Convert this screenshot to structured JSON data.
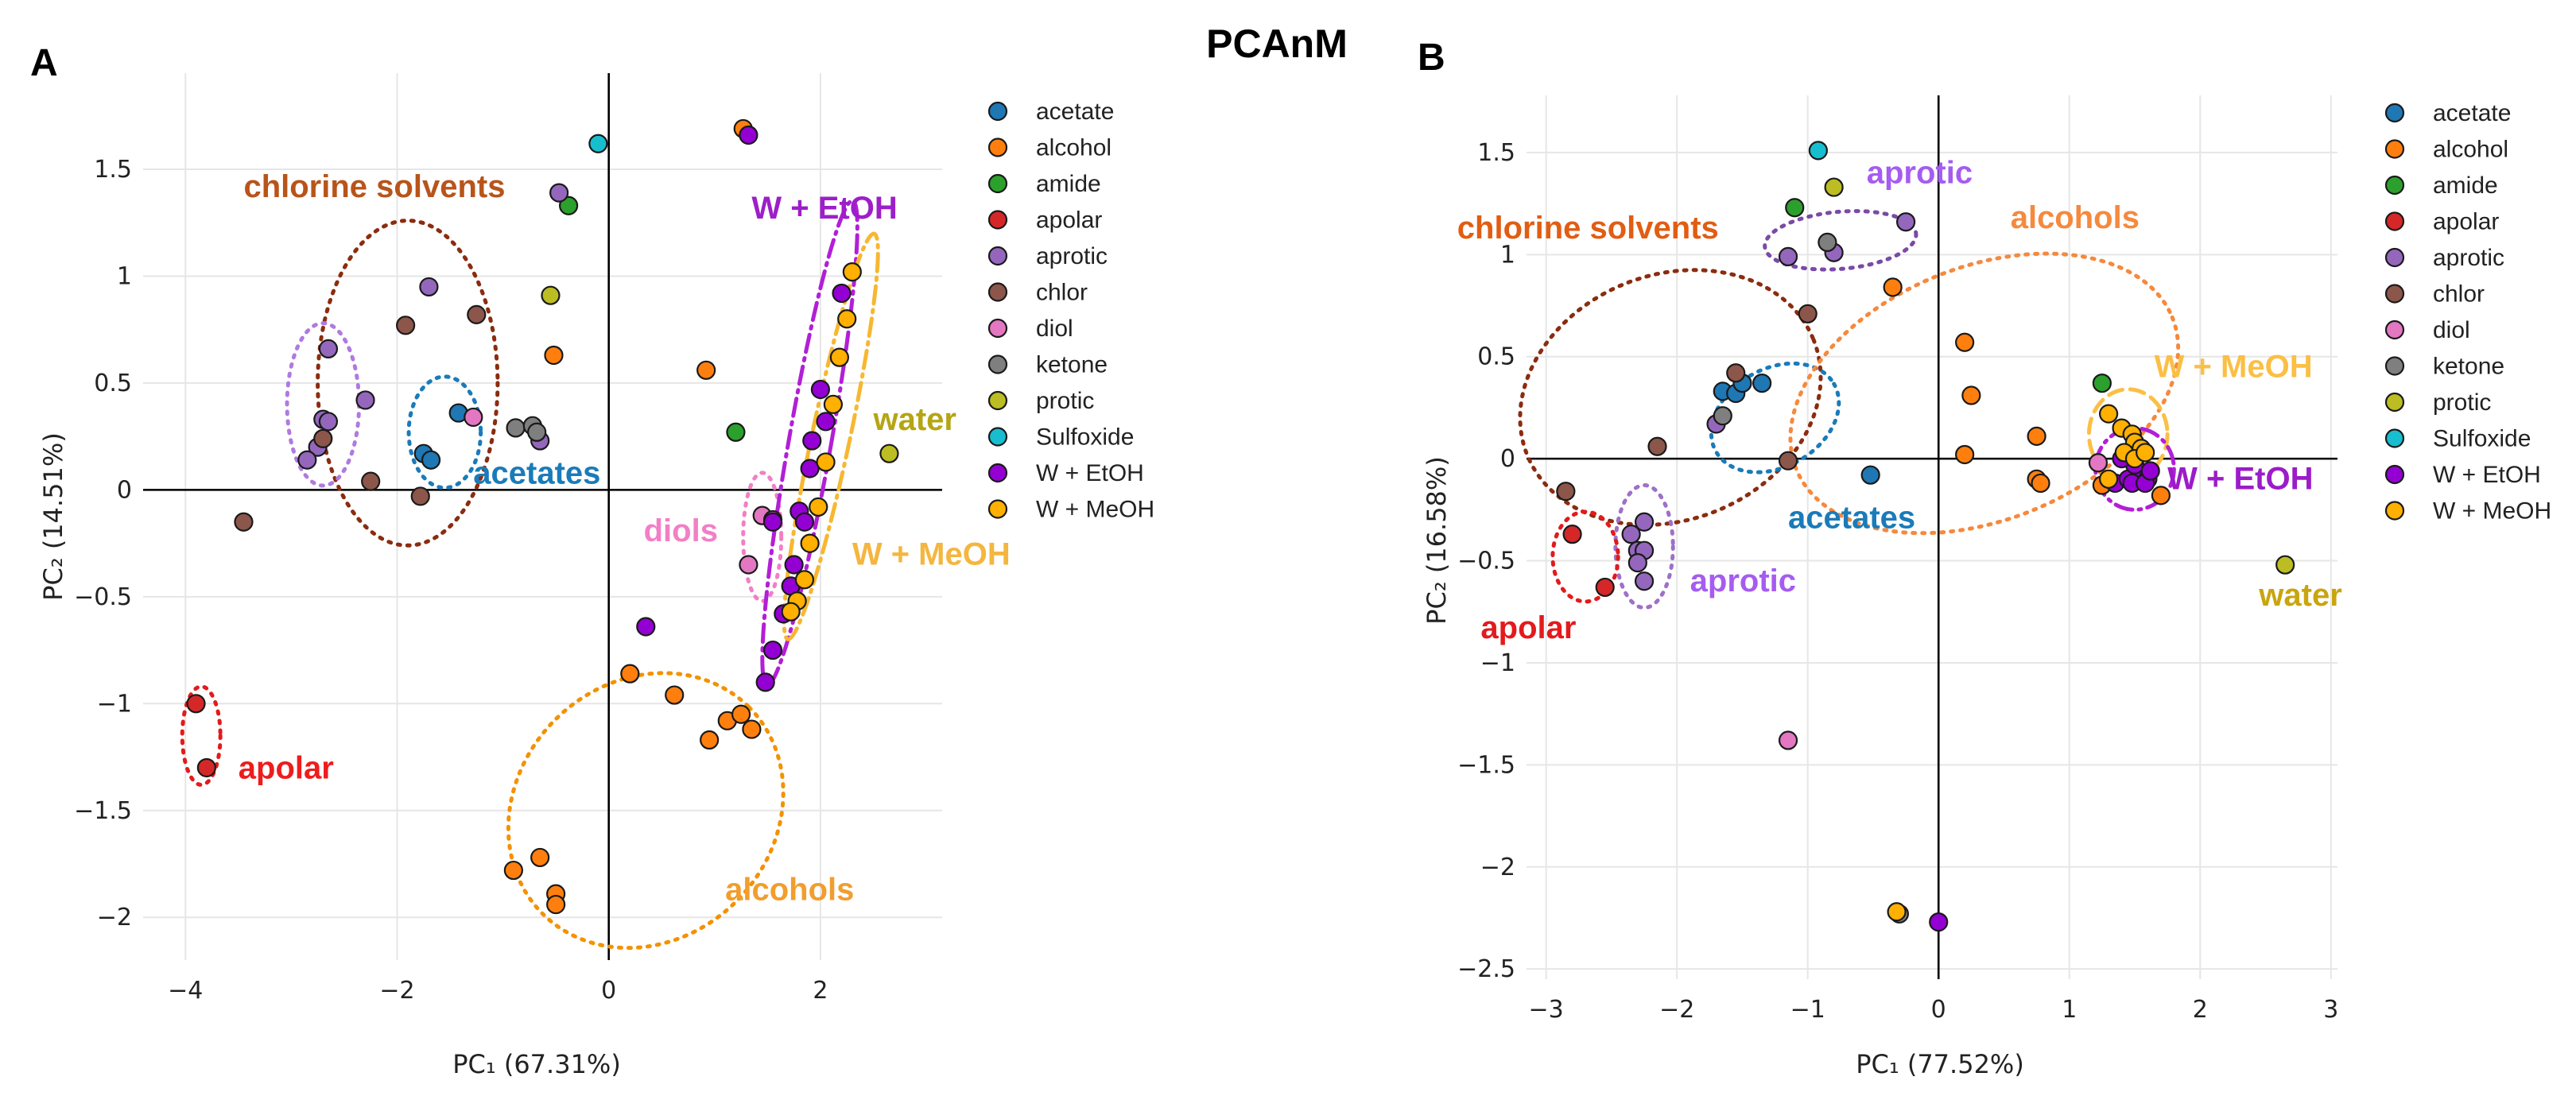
{
  "figure": {
    "title": "PCAnM",
    "colors": {
      "acetate": "#1f77b4",
      "alcohol": "#ff7f0e",
      "amide": "#2ca02c",
      "apolar": "#d62728",
      "aprotic": "#9467bd",
      "chlor": "#8c564b",
      "diol": "#e377c2",
      "ketone": "#7f7f7f",
      "protic": "#bcbd22",
      "Sulfoxide": "#17becf",
      "W + EtOH": "#9400d3",
      "W + MeOH": "#ffb000"
    }
  },
  "chart_data": [
    {
      "type": "scatter",
      "panel_label": "A",
      "xlabel": "PC₁ (67.31%)",
      "ylabel": "PC₂ (14.51%)",
      "xlim": [
        -4.4,
        3.15
      ],
      "ylim": [
        -2.2,
        1.95
      ],
      "xticks": [
        -4,
        -2,
        0,
        2
      ],
      "xtick_labels": [
        "−4",
        "−2",
        "0",
        "2"
      ],
      "yticks": [
        1.5,
        1,
        0.5,
        0,
        -0.5,
        -1,
        -1.5,
        -2
      ],
      "ytick_labels": [
        "1.5",
        "1",
        "0.5",
        "0",
        "−0.5",
        "−1",
        "−1.5",
        "−2"
      ],
      "legend": [
        "acetate",
        "alcohol",
        "amide",
        "apolar",
        "aprotic",
        "chlor",
        "diol",
        "ketone",
        "protic",
        "Sulfoxide",
        "W + EtOH",
        "W + MeOH"
      ],
      "series": [
        {
          "name": "acetate",
          "points": [
            [
              -1.42,
              0.36
            ],
            [
              -1.75,
              0.17
            ],
            [
              -1.68,
              0.14
            ]
          ]
        },
        {
          "name": "alcohol",
          "points": [
            [
              0.92,
              0.56
            ],
            [
              -0.52,
              0.63
            ],
            [
              0.2,
              -0.86
            ],
            [
              0.62,
              -0.96
            ],
            [
              0.95,
              -1.17
            ],
            [
              1.12,
              -1.08
            ],
            [
              1.25,
              -1.05
            ],
            [
              1.35,
              -1.12
            ],
            [
              -0.9,
              -1.78
            ],
            [
              -0.65,
              -1.72
            ],
            [
              -0.5,
              -1.89
            ],
            [
              -0.5,
              -1.94
            ],
            [
              1.27,
              1.69
            ]
          ]
        },
        {
          "name": "amide",
          "points": [
            [
              -0.38,
              1.33
            ],
            [
              1.2,
              0.27
            ]
          ]
        },
        {
          "name": "apolar",
          "points": [
            [
              -3.9,
              -1.0
            ],
            [
              -3.8,
              -1.3
            ]
          ]
        },
        {
          "name": "aprotic",
          "points": [
            [
              -0.47,
              1.39
            ],
            [
              -1.7,
              0.95
            ],
            [
              -2.65,
              0.66
            ],
            [
              -2.3,
              0.42
            ],
            [
              -2.7,
              0.33
            ],
            [
              -2.65,
              0.32
            ],
            [
              -2.75,
              0.2
            ],
            [
              -2.85,
              0.14
            ],
            [
              -0.65,
              0.23
            ]
          ]
        },
        {
          "name": "chlor",
          "points": [
            [
              -1.92,
              0.77
            ],
            [
              -1.25,
              0.82
            ],
            [
              -2.7,
              0.24
            ],
            [
              -2.25,
              0.04
            ],
            [
              -3.45,
              -0.15
            ],
            [
              -1.78,
              -0.03
            ]
          ]
        },
        {
          "name": "diol",
          "points": [
            [
              -1.28,
              0.34
            ],
            [
              1.45,
              -0.12
            ],
            [
              1.55,
              -0.14
            ],
            [
              1.32,
              -0.35
            ]
          ]
        },
        {
          "name": "ketone",
          "points": [
            [
              -0.88,
              0.29
            ],
            [
              -0.72,
              0.3
            ],
            [
              -0.68,
              0.27
            ]
          ]
        },
        {
          "name": "protic",
          "points": [
            [
              -0.55,
              0.91
            ],
            [
              2.65,
              0.17
            ]
          ]
        },
        {
          "name": "Sulfoxide",
          "points": [
            [
              -0.1,
              1.62
            ]
          ]
        },
        {
          "name": "W + EtOH",
          "points": [
            [
              1.32,
              1.66
            ],
            [
              2.2,
              0.92
            ],
            [
              2.0,
              0.47
            ],
            [
              1.92,
              0.23
            ],
            [
              1.9,
              0.1
            ],
            [
              1.8,
              -0.1
            ],
            [
              1.85,
              -0.15
            ],
            [
              1.75,
              -0.35
            ],
            [
              1.72,
              -0.45
            ],
            [
              1.65,
              -0.58
            ],
            [
              1.55,
              -0.75
            ],
            [
              1.48,
              -0.9
            ],
            [
              0.35,
              -0.64
            ],
            [
              2.05,
              0.32
            ],
            [
              1.55,
              -0.15
            ]
          ]
        },
        {
          "name": "W + MeOH",
          "points": [
            [
              2.3,
              1.02
            ],
            [
              2.25,
              0.8
            ],
            [
              2.18,
              0.62
            ],
            [
              2.12,
              0.4
            ],
            [
              2.05,
              0.13
            ],
            [
              1.98,
              -0.08
            ],
            [
              1.9,
              -0.25
            ],
            [
              1.85,
              -0.42
            ],
            [
              1.78,
              -0.52
            ],
            [
              1.72,
              -0.57
            ]
          ]
        }
      ],
      "annotations": [
        {
          "text": "chlorine solvents",
          "x": -3.45,
          "y": 1.37,
          "color": "#b8541a"
        },
        {
          "text": "W + EtOH",
          "x": 1.35,
          "y": 1.27,
          "color": "#9c1fc9"
        },
        {
          "text": "water",
          "x": 2.5,
          "y": 0.28,
          "color": "#b5a514"
        },
        {
          "text": "acetates",
          "x": -1.28,
          "y": 0.03,
          "color": "#1a7bb9"
        },
        {
          "text": "diols",
          "x": 0.33,
          "y": -0.24,
          "color": "#f27fc6"
        },
        {
          "text": "W + MeOH",
          "x": 2.3,
          "y": -0.35,
          "color": "#f4b63f"
        },
        {
          "text": "apolar",
          "x": -3.5,
          "y": -1.35,
          "color": "#ee1c1c"
        },
        {
          "text": "alcohols",
          "x": 1.1,
          "y": -1.92,
          "color": "#f29d2d"
        }
      ],
      "ellipses": [
        {
          "label": "chlorine solvents",
          "cx": -1.9,
          "cy": 0.5,
          "rx": 0.85,
          "ry": 0.76,
          "angle": 0,
          "color": "#8b2c0f",
          "dash": "dot"
        },
        {
          "label": "aprotic",
          "cx": -2.7,
          "cy": 0.4,
          "rx": 0.34,
          "ry": 0.38,
          "angle": 0,
          "color": "#b07ae0",
          "dash": "dot"
        },
        {
          "label": "acetates",
          "cx": -1.55,
          "cy": 0.27,
          "rx": 0.34,
          "ry": 0.26,
          "angle": 0,
          "color": "#1a7bb9",
          "dash": "dot"
        },
        {
          "label": "apolar",
          "cx": -3.85,
          "cy": -1.15,
          "rx": 0.18,
          "ry": 0.23,
          "angle": 0,
          "color": "#e31a1c",
          "dash": "dot"
        },
        {
          "label": "diols",
          "cx": 1.45,
          "cy": -0.22,
          "rx": 0.18,
          "ry": 0.3,
          "angle": 0,
          "color": "#f27fc6",
          "dash": "dot"
        },
        {
          "label": "alcohols",
          "cx": 0.35,
          "cy": -1.5,
          "rx": 1.38,
          "ry": 0.6,
          "angle": -45,
          "color": "#f39200",
          "dash": "dot"
        },
        {
          "label": "W + EtOH",
          "cx": 1.9,
          "cy": 0.22,
          "rx": 0.2,
          "ry": 1.15,
          "angle": 10,
          "color": "#b21fd6",
          "dash": "dashdot"
        },
        {
          "label": "W + MeOH",
          "cx": 2.1,
          "cy": 0.25,
          "rx": 0.18,
          "ry": 0.97,
          "angle": 12,
          "color": "#f7b731",
          "dash": "dashdot"
        }
      ]
    },
    {
      "type": "scatter",
      "panel_label": "B",
      "xlabel": "PC₁ (77.52%)",
      "ylabel": "PC₂ (16.58%)",
      "xlim": [
        -3.15,
        3.05
      ],
      "ylim": [
        -2.55,
        1.78
      ],
      "xticks": [
        -3,
        -2,
        -1,
        0,
        1,
        2,
        3
      ],
      "xtick_labels": [
        "−3",
        "−2",
        "−1",
        "0",
        "1",
        "2",
        "3"
      ],
      "yticks": [
        1.5,
        1,
        0.5,
        0,
        -0.5,
        -1,
        -1.5,
        -2,
        -2.5
      ],
      "ytick_labels": [
        "1.5",
        "1",
        "0.5",
        "0",
        "−0.5",
        "−1",
        "−1.5",
        "−2",
        "−2.5"
      ],
      "legend": [
        "acetate",
        "alcohol",
        "amide",
        "apolar",
        "aprotic",
        "chlor",
        "diol",
        "ketone",
        "protic",
        "Sulfoxide",
        "W + EtOH",
        "W + MeOH"
      ],
      "series": [
        {
          "name": "acetate",
          "points": [
            [
              -1.65,
              0.33
            ],
            [
              -1.55,
              0.32
            ],
            [
              -1.35,
              0.37
            ],
            [
              -1.5,
              0.37
            ],
            [
              -0.52,
              -0.08
            ]
          ]
        },
        {
          "name": "alcohol",
          "points": [
            [
              -0.35,
              0.84
            ],
            [
              0.2,
              0.57
            ],
            [
              0.25,
              0.31
            ],
            [
              0.2,
              0.02
            ],
            [
              0.75,
              0.11
            ],
            [
              0.75,
              -0.1
            ],
            [
              0.78,
              -0.12
            ],
            [
              1.25,
              -0.13
            ],
            [
              1.7,
              -0.18
            ]
          ]
        },
        {
          "name": "amide",
          "points": [
            [
              -1.1,
              1.23
            ],
            [
              1.25,
              0.37
            ]
          ]
        },
        {
          "name": "apolar",
          "points": [
            [
              -2.8,
              -0.37
            ],
            [
              -2.55,
              -0.63
            ]
          ]
        },
        {
          "name": "aprotic",
          "points": [
            [
              -0.25,
              1.16
            ],
            [
              -1.15,
              0.99
            ],
            [
              -0.8,
              1.01
            ],
            [
              -1.7,
              0.17
            ],
            [
              -2.25,
              -0.31
            ],
            [
              -2.35,
              -0.37
            ],
            [
              -2.3,
              -0.45
            ],
            [
              -2.25,
              -0.45
            ],
            [
              -2.3,
              -0.51
            ],
            [
              -2.25,
              -0.6
            ]
          ]
        },
        {
          "name": "chlor",
          "points": [
            [
              -1.0,
              0.71
            ],
            [
              -1.55,
              0.42
            ],
            [
              -2.15,
              0.06
            ],
            [
              -2.85,
              -0.16
            ],
            [
              -1.15,
              -0.01
            ]
          ]
        },
        {
          "name": "diol",
          "points": [
            [
              -1.15,
              -1.38
            ],
            [
              1.22,
              -0.02
            ]
          ]
        },
        {
          "name": "ketone",
          "points": [
            [
              -1.65,
              0.21
            ],
            [
              -0.85,
              1.06
            ],
            [
              -0.3,
              -2.23
            ]
          ]
        },
        {
          "name": "protic",
          "points": [
            [
              -0.8,
              1.33
            ],
            [
              2.65,
              -0.52
            ]
          ]
        },
        {
          "name": "Sulfoxide",
          "points": [
            [
              -0.92,
              1.51
            ]
          ]
        },
        {
          "name": "W + EtOH",
          "points": [
            [
              0.0,
              -2.27
            ],
            [
              1.35,
              -0.12
            ],
            [
              1.45,
              -0.1
            ],
            [
              1.55,
              -0.08
            ],
            [
              1.6,
              -0.1
            ],
            [
              1.5,
              -0.03
            ],
            [
              1.4,
              0.0
            ],
            [
              1.48,
              -0.12
            ],
            [
              1.58,
              -0.12
            ],
            [
              1.62,
              -0.06
            ]
          ]
        },
        {
          "name": "W + MeOH",
          "points": [
            [
              -0.32,
              -2.22
            ],
            [
              1.3,
              0.22
            ],
            [
              1.4,
              0.15
            ],
            [
              1.48,
              0.12
            ],
            [
              1.5,
              0.08
            ],
            [
              1.55,
              0.05
            ],
            [
              1.42,
              0.03
            ],
            [
              1.5,
              0.0
            ],
            [
              1.58,
              0.03
            ],
            [
              1.3,
              -0.1
            ]
          ]
        }
      ],
      "annotations": [
        {
          "text": "aprotic",
          "x": -0.55,
          "y": 1.35,
          "color": "#a55cf0"
        },
        {
          "text": "chlorine solvents",
          "x": -3.68,
          "y": 1.08,
          "color": "#e15d13"
        },
        {
          "text": "alcohols",
          "x": 0.55,
          "y": 1.13,
          "color": "#f5893d"
        },
        {
          "text": "W + MeOH",
          "x": 1.65,
          "y": 0.4,
          "color": "#fbbf45"
        },
        {
          "text": "W + EtOH",
          "x": 1.75,
          "y": -0.15,
          "color": "#9b1cc8"
        },
        {
          "text": "acetates",
          "x": -1.15,
          "y": -0.34,
          "color": "#1a7bb9"
        },
        {
          "text": "aprotic",
          "x": -1.9,
          "y": -0.65,
          "color": "#a55cf0"
        },
        {
          "text": "apolar",
          "x": -3.5,
          "y": -0.88,
          "color": "#e31a1c"
        },
        {
          "text": "water",
          "x": 2.45,
          "y": -0.72,
          "color": "#c9a50e"
        }
      ],
      "ellipses": [
        {
          "label": "aprotic",
          "cx": -0.75,
          "cy": 1.07,
          "rx": 0.58,
          "ry": 0.14,
          "angle": -5,
          "color": "#7a4aa6",
          "dash": "dot"
        },
        {
          "label": "chlorine solvents",
          "cx": -2.05,
          "cy": 0.3,
          "rx": 1.18,
          "ry": 0.6,
          "angle": -22,
          "color": "#8b2c0f",
          "dash": "dot"
        },
        {
          "label": "acetates",
          "cx": -1.25,
          "cy": 0.2,
          "rx": 0.52,
          "ry": 0.24,
          "angle": -30,
          "color": "#1a7bb9",
          "dash": "dot"
        },
        {
          "label": "alcohols",
          "cx": 0.35,
          "cy": 0.32,
          "rx": 1.55,
          "ry": 0.62,
          "angle": -22,
          "color": "#f5893d",
          "dash": "dot"
        },
        {
          "label": "W + MeOH",
          "cx": 1.45,
          "cy": 0.12,
          "rx": 0.3,
          "ry": 0.22,
          "angle": 0,
          "color": "#fbbf45",
          "dash": "dash"
        },
        {
          "label": "W + EtOH",
          "cx": 1.5,
          "cy": -0.05,
          "rx": 0.3,
          "ry": 0.2,
          "angle": 0,
          "color": "#b21fd6",
          "dash": "dashdot"
        },
        {
          "label": "aprotic",
          "cx": -2.25,
          "cy": -0.43,
          "rx": 0.22,
          "ry": 0.3,
          "angle": 0,
          "color": "#9e70c9",
          "dash": "dot"
        },
        {
          "label": "apolar",
          "cx": -2.7,
          "cy": -0.48,
          "rx": 0.25,
          "ry": 0.22,
          "angle": 0,
          "color": "#e31a1c",
          "dash": "dot"
        }
      ]
    }
  ]
}
